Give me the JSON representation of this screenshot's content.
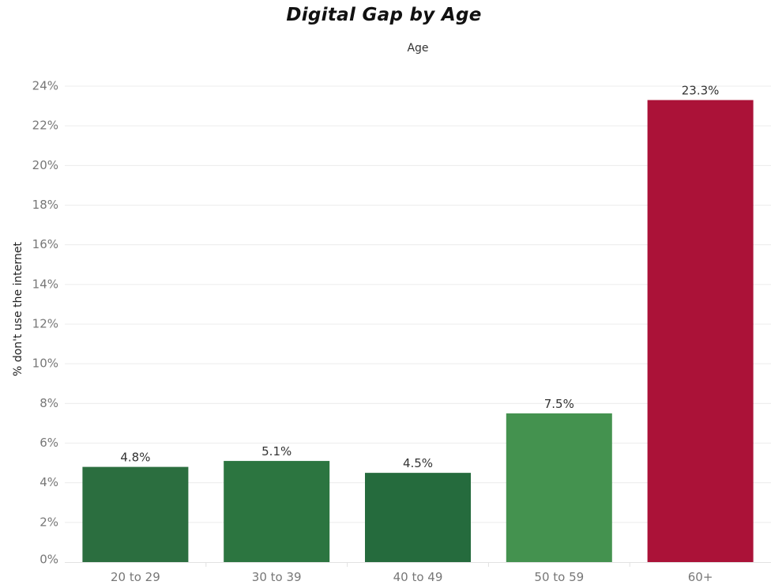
{
  "title": "Digital Gap by Age",
  "chart_data": {
    "type": "bar",
    "title": "Digital Gap by Age",
    "column_header": "Age",
    "xlabel": "",
    "ylabel": "% don't use the internet",
    "categories": [
      "20 to 29",
      "30 to 39",
      "40 to 49",
      "50 to 59",
      "60+"
    ],
    "values": [
      4.8,
      5.1,
      4.5,
      7.5,
      23.3
    ],
    "data_labels": [
      "4.8%",
      "5.1%",
      "4.5%",
      "7.5%",
      "23.3%"
    ],
    "colors": [
      "#2b6e3f",
      "#2c7540",
      "#256b3d",
      "#44924f",
      "#ab1238"
    ],
    "ylim": [
      0,
      24
    ],
    "yticks": [
      0,
      2,
      4,
      6,
      8,
      10,
      12,
      14,
      16,
      18,
      20,
      22,
      24
    ],
    "ytick_labels": [
      "0%",
      "2%",
      "4%",
      "6%",
      "8%",
      "10%",
      "12%",
      "14%",
      "16%",
      "18%",
      "20%",
      "22%",
      "24%"
    ],
    "grid": true,
    "legend": "none"
  }
}
